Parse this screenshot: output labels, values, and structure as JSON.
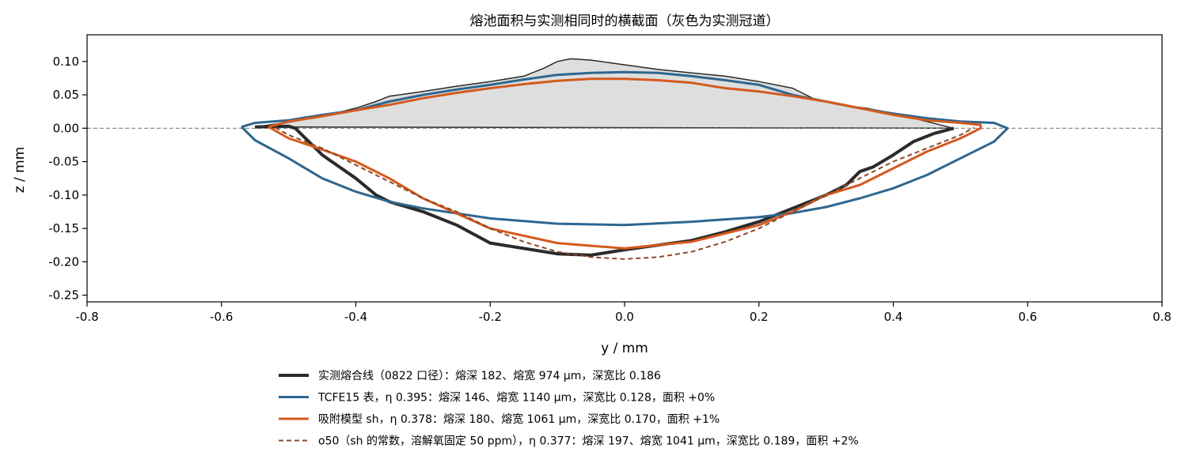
{
  "chart_data": {
    "type": "line",
    "title": "熔池面积与实测相同时的横截面（灰色为实测冠道）",
    "xlabel": "y / mm",
    "ylabel": "z / mm",
    "xlim": [
      -0.8,
      0.8
    ],
    "ylim": [
      -0.26,
      0.14
    ],
    "xticks": [
      -0.8,
      -0.6,
      -0.4,
      -0.2,
      0.0,
      0.2,
      0.4,
      0.6,
      0.8
    ],
    "xtick_labels": [
      "-0.8",
      "-0.6",
      "-0.4",
      "-0.2",
      "0.0",
      "0.2",
      "0.4",
      "0.6",
      "0.8"
    ],
    "yticks": [
      0.1,
      0.05,
      0.0,
      -0.05,
      -0.1,
      -0.15,
      -0.2,
      -0.25
    ],
    "ytick_labels": [
      "0.10",
      "0.05",
      "0.00",
      "-0.05",
      "-0.10",
      "-0.15",
      "-0.20",
      "-0.25"
    ],
    "grid": false,
    "reference_line_y": 0.0,
    "legend_position": "below",
    "crown": {
      "color": "#dedede",
      "edge_color": "#2a2a2a",
      "points": [
        [
          -0.55,
          0.002
        ],
        [
          -0.5,
          0.009
        ],
        [
          -0.45,
          0.018
        ],
        [
          -0.4,
          0.03
        ],
        [
          -0.37,
          0.04
        ],
        [
          -0.35,
          0.048
        ],
        [
          -0.3,
          0.055
        ],
        [
          -0.25,
          0.063
        ],
        [
          -0.2,
          0.07
        ],
        [
          -0.15,
          0.078
        ],
        [
          -0.12,
          0.09
        ],
        [
          -0.1,
          0.1
        ],
        [
          -0.08,
          0.104
        ],
        [
          -0.05,
          0.102
        ],
        [
          0.0,
          0.095
        ],
        [
          0.05,
          0.088
        ],
        [
          0.1,
          0.083
        ],
        [
          0.15,
          0.078
        ],
        [
          0.2,
          0.07
        ],
        [
          0.25,
          0.06
        ],
        [
          0.28,
          0.045
        ],
        [
          0.32,
          0.035
        ],
        [
          0.36,
          0.03
        ],
        [
          0.4,
          0.022
        ],
        [
          0.45,
          0.01
        ],
        [
          0.49,
          0.0
        ]
      ]
    },
    "series": [
      {
        "name": "实测熔合线（0822 口径）：熔深 182、熔宽 974 μm，深宽比 0.186",
        "color": "#2b2b2b",
        "width": 4,
        "dash": "",
        "points": [
          [
            -0.55,
            0.002
          ],
          [
            -0.5,
            0.003
          ],
          [
            -0.49,
            0.0
          ],
          [
            -0.47,
            -0.02
          ],
          [
            -0.45,
            -0.04
          ],
          [
            -0.4,
            -0.075
          ],
          [
            -0.37,
            -0.1
          ],
          [
            -0.35,
            -0.11
          ],
          [
            -0.3,
            -0.125
          ],
          [
            -0.25,
            -0.145
          ],
          [
            -0.2,
            -0.172
          ],
          [
            -0.15,
            -0.18
          ],
          [
            -0.1,
            -0.188
          ],
          [
            -0.05,
            -0.19
          ],
          [
            0.0,
            -0.182
          ],
          [
            0.05,
            -0.175
          ],
          [
            0.1,
            -0.168
          ],
          [
            0.15,
            -0.155
          ],
          [
            0.2,
            -0.14
          ],
          [
            0.25,
            -0.12
          ],
          [
            0.3,
            -0.1
          ],
          [
            0.33,
            -0.085
          ],
          [
            0.34,
            -0.075
          ],
          [
            0.35,
            -0.065
          ],
          [
            0.37,
            -0.058
          ],
          [
            0.4,
            -0.04
          ],
          [
            0.43,
            -0.02
          ],
          [
            0.46,
            -0.008
          ],
          [
            0.49,
            0.0
          ]
        ]
      },
      {
        "name": "TCFE15 表，η 0.395：熔深 146、熔宽 1140 μm，深宽比 0.128，面积 +0%",
        "color": "#2e6690",
        "width": 3,
        "dash": "",
        "points": [
          [
            -0.57,
            0.002
          ],
          [
            -0.55,
            0.008
          ],
          [
            -0.5,
            0.012
          ],
          [
            -0.45,
            0.02
          ],
          [
            -0.4,
            0.027
          ],
          [
            -0.35,
            0.04
          ],
          [
            -0.3,
            0.05
          ],
          [
            -0.25,
            0.058
          ],
          [
            -0.2,
            0.065
          ],
          [
            -0.15,
            0.073
          ],
          [
            -0.1,
            0.08
          ],
          [
            -0.05,
            0.083
          ],
          [
            0.0,
            0.084
          ],
          [
            0.05,
            0.083
          ],
          [
            0.1,
            0.078
          ],
          [
            0.15,
            0.072
          ],
          [
            0.2,
            0.065
          ],
          [
            0.25,
            0.05
          ],
          [
            0.3,
            0.04
          ],
          [
            0.35,
            0.03
          ],
          [
            0.4,
            0.022
          ],
          [
            0.45,
            0.015
          ],
          [
            0.5,
            0.01
          ],
          [
            0.55,
            0.008
          ],
          [
            0.57,
            0.0
          ],
          [
            0.55,
            -0.02
          ],
          [
            0.5,
            -0.045
          ],
          [
            0.45,
            -0.07
          ],
          [
            0.4,
            -0.09
          ],
          [
            0.35,
            -0.105
          ],
          [
            0.3,
            -0.118
          ],
          [
            0.25,
            -0.127
          ],
          [
            0.2,
            -0.133
          ],
          [
            0.1,
            -0.14
          ],
          [
            0.0,
            -0.145
          ],
          [
            -0.1,
            -0.143
          ],
          [
            -0.2,
            -0.135
          ],
          [
            -0.3,
            -0.12
          ],
          [
            -0.35,
            -0.11
          ],
          [
            -0.4,
            -0.095
          ],
          [
            -0.45,
            -0.075
          ],
          [
            -0.5,
            -0.045
          ],
          [
            -0.55,
            -0.018
          ],
          [
            -0.57,
            0.002
          ]
        ]
      },
      {
        "name": "吸附模型 sh，η 0.378：熔深 180、熔宽 1061 μm，深宽比 0.170，面积 +1%",
        "color": "#d45a1e",
        "width": 3,
        "dash": "",
        "points": [
          [
            -0.53,
            0.002
          ],
          [
            -0.5,
            0.01
          ],
          [
            -0.45,
            0.018
          ],
          [
            -0.4,
            0.027
          ],
          [
            -0.35,
            0.035
          ],
          [
            -0.3,
            0.045
          ],
          [
            -0.25,
            0.053
          ],
          [
            -0.2,
            0.06
          ],
          [
            -0.15,
            0.066
          ],
          [
            -0.1,
            0.071
          ],
          [
            -0.05,
            0.074
          ],
          [
            0.0,
            0.074
          ],
          [
            0.05,
            0.072
          ],
          [
            0.1,
            0.068
          ],
          [
            0.15,
            0.06
          ],
          [
            0.2,
            0.055
          ],
          [
            0.25,
            0.048
          ],
          [
            0.3,
            0.04
          ],
          [
            0.35,
            0.03
          ],
          [
            0.4,
            0.02
          ],
          [
            0.45,
            0.012
          ],
          [
            0.5,
            0.008
          ],
          [
            0.53,
            0.005
          ],
          [
            0.53,
            0.0
          ],
          [
            0.5,
            -0.015
          ],
          [
            0.45,
            -0.035
          ],
          [
            0.4,
            -0.06
          ],
          [
            0.35,
            -0.085
          ],
          [
            0.3,
            -0.1
          ],
          [
            0.25,
            -0.125
          ],
          [
            0.2,
            -0.145
          ],
          [
            0.1,
            -0.17
          ],
          [
            0.0,
            -0.18
          ],
          [
            -0.1,
            -0.172
          ],
          [
            -0.2,
            -0.15
          ],
          [
            -0.3,
            -0.105
          ],
          [
            -0.35,
            -0.075
          ],
          [
            -0.4,
            -0.05
          ],
          [
            -0.45,
            -0.032
          ],
          [
            -0.5,
            -0.015
          ],
          [
            -0.53,
            0.002
          ]
        ]
      },
      {
        "name": "o50（sh 的常数，溶解氧固定 50 ppm），η 0.377：熔深 197、熔宽 1041 μm，深宽比 0.189，面积 +2%",
        "color": "#8b4a2b",
        "width": 2,
        "dash": "6,4",
        "points": [
          [
            -0.52,
            0.001
          ],
          [
            -0.5,
            -0.01
          ],
          [
            -0.45,
            -0.03
          ],
          [
            -0.4,
            -0.055
          ],
          [
            -0.35,
            -0.08
          ],
          [
            -0.3,
            -0.105
          ],
          [
            -0.25,
            -0.125
          ],
          [
            -0.2,
            -0.15
          ],
          [
            -0.15,
            -0.17
          ],
          [
            -0.1,
            -0.185
          ],
          [
            -0.05,
            -0.193
          ],
          [
            0.0,
            -0.196
          ],
          [
            0.05,
            -0.193
          ],
          [
            0.1,
            -0.185
          ],
          [
            0.15,
            -0.17
          ],
          [
            0.2,
            -0.15
          ],
          [
            0.25,
            -0.125
          ],
          [
            0.3,
            -0.1
          ],
          [
            0.35,
            -0.075
          ],
          [
            0.4,
            -0.05
          ],
          [
            0.45,
            -0.03
          ],
          [
            0.5,
            -0.01
          ],
          [
            0.52,
            0.001
          ]
        ]
      }
    ]
  }
}
